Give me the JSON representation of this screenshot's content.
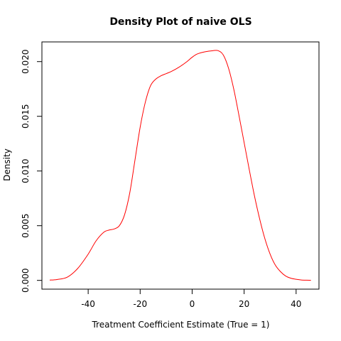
{
  "chart_data": {
    "type": "line",
    "title": "Density Plot of naive OLS",
    "xlabel": "Treatment Coefficient Estimate (True = 1)",
    "ylabel": "Density",
    "xlim": [
      -57.8,
      48.8
    ],
    "ylim": [
      -0.0008,
      0.0218
    ],
    "x_ticks": [
      -40,
      -20,
      0,
      20,
      40
    ],
    "x_tick_labels": [
      "-40",
      "-20",
      "0",
      "20",
      "40"
    ],
    "y_ticks": [
      0.0,
      0.005,
      0.01,
      0.015,
      0.02
    ],
    "y_tick_labels": [
      "0.000",
      "0.005",
      "0.010",
      "0.015",
      "0.020"
    ],
    "grid": false,
    "series": [
      {
        "color": "#ff0000",
        "x": [
          -54.8,
          -52,
          -48,
          -44,
          -40,
          -37,
          -34,
          -32,
          -30,
          -28,
          -26,
          -24,
          -22,
          -20,
          -18,
          -16,
          -14,
          -12,
          -10,
          -8,
          -5,
          -2,
          0,
          2,
          5,
          8,
          10,
          12,
          14,
          16,
          18,
          20,
          22,
          24,
          26,
          28,
          30,
          32,
          34,
          36,
          38,
          40,
          42,
          44,
          45.7
        ],
        "values": [
          3e-05,
          8e-05,
          0.0003,
          0.0011,
          0.0024,
          0.0036,
          0.0044,
          0.0046,
          0.0047,
          0.005,
          0.006,
          0.008,
          0.011,
          0.014,
          0.0163,
          0.0178,
          0.0184,
          0.0187,
          0.0189,
          0.0191,
          0.0195,
          0.02,
          0.0204,
          0.0207,
          0.0209,
          0.021,
          0.021,
          0.0206,
          0.0194,
          0.0175,
          0.0151,
          0.0126,
          0.0101,
          0.0077,
          0.0056,
          0.0038,
          0.0024,
          0.0014,
          0.0008,
          0.0004,
          0.0002,
          0.0001,
          4e-05,
          2e-05,
          1e-05
        ]
      }
    ]
  }
}
